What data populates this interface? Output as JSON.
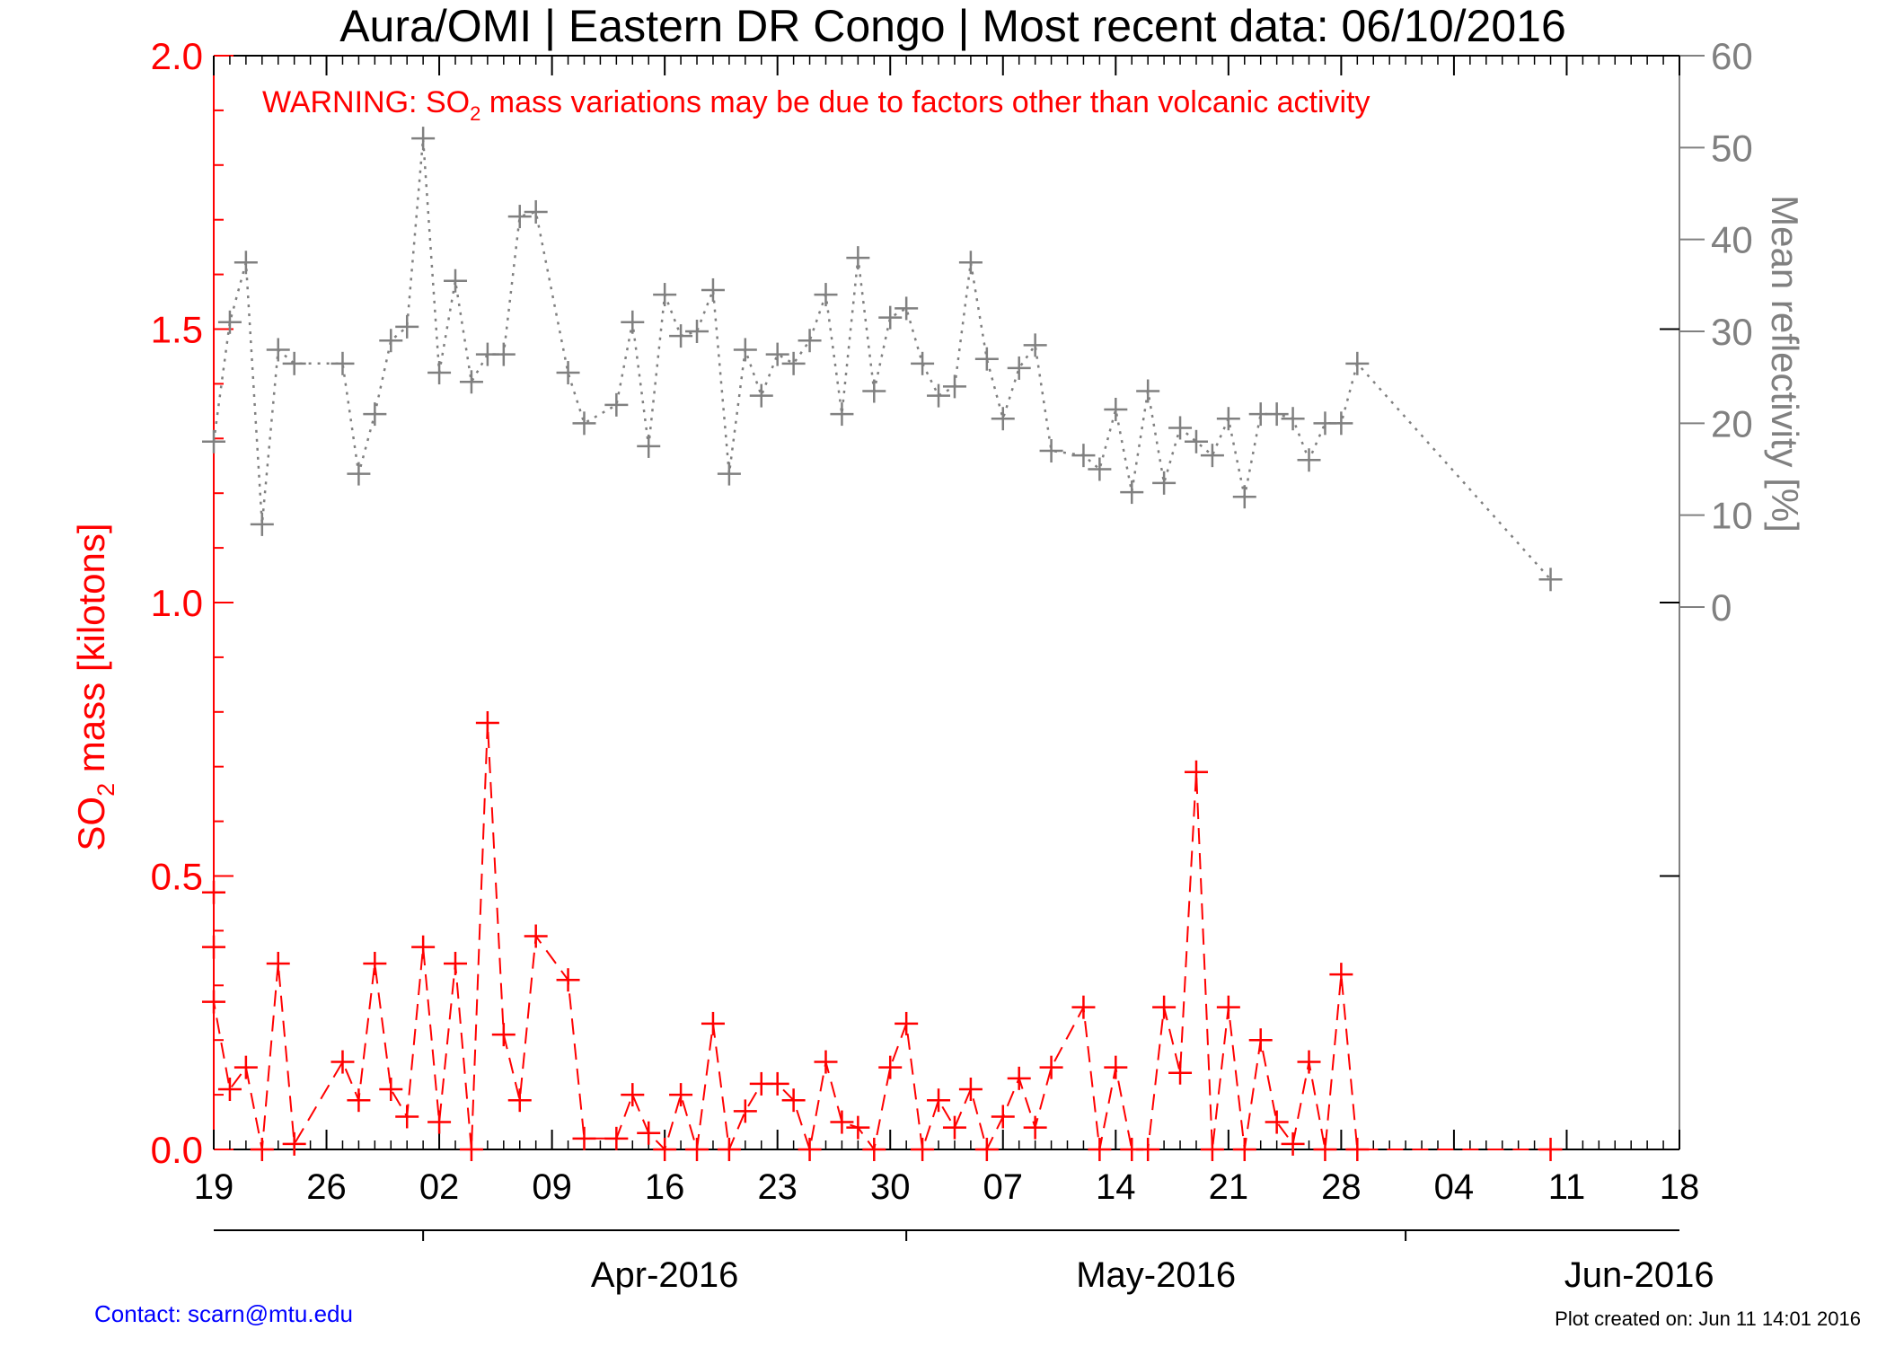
{
  "title": "Aura/OMI | Eastern DR Congo | Most recent data: 06/10/2016",
  "warning": {
    "prefix": "WARNING: SO",
    "subscript": "2",
    "suffix": " mass variations may be due to factors other than volcanic activity"
  },
  "left_axis": {
    "label_prefix": "SO",
    "label_subscript": "2",
    "label_suffix": " mass [kilotons]",
    "ticks": [
      "0.0",
      "0.5",
      "1.0",
      "1.5",
      "2.0"
    ],
    "color": "#ff0000"
  },
  "right_axis": {
    "label": "Mean reflectivity [%]",
    "ticks": [
      "0",
      "10",
      "20",
      "30",
      "40",
      "50",
      "60"
    ],
    "color": "#808080"
  },
  "x_axis": {
    "day_ticks": [
      "19",
      "26",
      "02",
      "09",
      "16",
      "23",
      "30",
      "07",
      "14",
      "21",
      "28",
      "04",
      "11",
      "18"
    ],
    "month_labels": [
      "Apr-2016",
      "May-2016",
      "Jun-2016"
    ]
  },
  "footer": {
    "contact": "Contact: scarn@mtu.edu",
    "created": "Plot created on: Jun 11 14:01 2016"
  },
  "chart_data": {
    "type": "line",
    "title": "Aura/OMI | Eastern DR Congo | Most recent data: 06/10/2016",
    "xlabel": "",
    "ylabel": "SO2 mass [kilotons]",
    "y2label": "Mean reflectivity [%]",
    "xlim": [
      "2016-03-19",
      "2016-06-18"
    ],
    "ylim": [
      0,
      2.0
    ],
    "y2lim": [
      0,
      60
    ],
    "grid": false,
    "series": [
      {
        "axis": "left",
        "color": "#ff0000",
        "style": "dashed",
        "marker": "plus",
        "points": [
          [
            "2016-03-19",
            0.47
          ],
          [
            "2016-03-19",
            0.37
          ],
          [
            "2016-03-19",
            0.27
          ],
          [
            "2016-03-20",
            0.11
          ],
          [
            "2016-03-21",
            0.15
          ],
          [
            "2016-03-22",
            0.0
          ],
          [
            "2016-03-23",
            0.34
          ],
          [
            "2016-03-24",
            0.01
          ],
          [
            "2016-03-27",
            0.16
          ],
          [
            "2016-03-28",
            0.09
          ],
          [
            "2016-03-29",
            0.34
          ],
          [
            "2016-03-30",
            0.11
          ],
          [
            "2016-03-31",
            0.06
          ],
          [
            "2016-04-01",
            0.37
          ],
          [
            "2016-04-02",
            0.05
          ],
          [
            "2016-04-03",
            0.34
          ],
          [
            "2016-04-04",
            0.0
          ],
          [
            "2016-04-05",
            0.78
          ],
          [
            "2016-04-06",
            0.21
          ],
          [
            "2016-04-07",
            0.09
          ],
          [
            "2016-04-08",
            0.39
          ],
          [
            "2016-04-10",
            0.31
          ],
          [
            "2016-04-11",
            0.02
          ],
          [
            "2016-04-13",
            0.02
          ],
          [
            "2016-04-14",
            0.1
          ],
          [
            "2016-04-15",
            0.03
          ],
          [
            "2016-04-16",
            0.0
          ],
          [
            "2016-04-17",
            0.1
          ],
          [
            "2016-04-18",
            0.0
          ],
          [
            "2016-04-19",
            0.23
          ],
          [
            "2016-04-20",
            0.0
          ],
          [
            "2016-04-21",
            0.07
          ],
          [
            "2016-04-22",
            0.12
          ],
          [
            "2016-04-23",
            0.12
          ],
          [
            "2016-04-24",
            0.09
          ],
          [
            "2016-04-25",
            0.0
          ],
          [
            "2016-04-26",
            0.16
          ],
          [
            "2016-04-27",
            0.05
          ],
          [
            "2016-04-28",
            0.04
          ],
          [
            "2016-04-29",
            0.0
          ],
          [
            "2016-04-30",
            0.15
          ],
          [
            "2016-05-01",
            0.23
          ],
          [
            "2016-05-02",
            0.0
          ],
          [
            "2016-05-03",
            0.09
          ],
          [
            "2016-05-04",
            0.04
          ],
          [
            "2016-05-05",
            0.11
          ],
          [
            "2016-05-06",
            0.0
          ],
          [
            "2016-05-07",
            0.06
          ],
          [
            "2016-05-08",
            0.13
          ],
          [
            "2016-05-09",
            0.04
          ],
          [
            "2016-05-10",
            0.15
          ],
          [
            "2016-05-12",
            0.26
          ],
          [
            "2016-05-13",
            0.0
          ],
          [
            "2016-05-14",
            0.15
          ],
          [
            "2016-05-15",
            0.0
          ],
          [
            "2016-05-16",
            0.0
          ],
          [
            "2016-05-17",
            0.26
          ],
          [
            "2016-05-18",
            0.14
          ],
          [
            "2016-05-19",
            0.69
          ],
          [
            "2016-05-20",
            0.0
          ],
          [
            "2016-05-21",
            0.26
          ],
          [
            "2016-05-22",
            0.0
          ],
          [
            "2016-05-23",
            0.2
          ],
          [
            "2016-05-24",
            0.05
          ],
          [
            "2016-05-25",
            0.01
          ],
          [
            "2016-05-26",
            0.16
          ],
          [
            "2016-05-27",
            0.0
          ],
          [
            "2016-05-28",
            0.32
          ],
          [
            "2016-05-29",
            0.0
          ],
          [
            "2016-06-10",
            0.0
          ]
        ]
      },
      {
        "axis": "right",
        "color": "#808080",
        "style": "dotted",
        "marker": "plus",
        "points": [
          [
            "2016-03-19",
            18.0
          ],
          [
            "2016-03-20",
            31.0
          ],
          [
            "2016-03-21",
            37.5
          ],
          [
            "2016-03-22",
            9.0
          ],
          [
            "2016-03-23",
            28.0
          ],
          [
            "2016-03-24",
            26.5
          ],
          [
            "2016-03-27",
            26.5
          ],
          [
            "2016-03-28",
            14.5
          ],
          [
            "2016-03-29",
            21.0
          ],
          [
            "2016-03-30",
            29.0
          ],
          [
            "2016-03-31",
            30.5
          ],
          [
            "2016-04-01",
            51.0
          ],
          [
            "2016-04-02",
            25.5
          ],
          [
            "2016-04-03",
            35.5
          ],
          [
            "2016-04-04",
            24.5
          ],
          [
            "2016-04-05",
            27.5
          ],
          [
            "2016-04-06",
            27.5
          ],
          [
            "2016-04-07",
            42.5
          ],
          [
            "2016-04-08",
            43.0
          ],
          [
            "2016-04-10",
            25.5
          ],
          [
            "2016-04-11",
            20.0
          ],
          [
            "2016-04-13",
            22.0
          ],
          [
            "2016-04-14",
            31.0
          ],
          [
            "2016-04-15",
            17.5
          ],
          [
            "2016-04-16",
            34.0
          ],
          [
            "2016-04-17",
            29.5
          ],
          [
            "2016-04-18",
            30.0
          ],
          [
            "2016-04-19",
            34.5
          ],
          [
            "2016-04-20",
            14.5
          ],
          [
            "2016-04-21",
            28.0
          ],
          [
            "2016-04-22",
            23.0
          ],
          [
            "2016-04-23",
            27.5
          ],
          [
            "2016-04-24",
            26.5
          ],
          [
            "2016-04-25",
            29.0
          ],
          [
            "2016-04-26",
            34.0
          ],
          [
            "2016-04-27",
            21.0
          ],
          [
            "2016-04-28",
            38.0
          ],
          [
            "2016-04-29",
            23.5
          ],
          [
            "2016-04-30",
            31.5
          ],
          [
            "2016-05-01",
            32.5
          ],
          [
            "2016-05-02",
            26.5
          ],
          [
            "2016-05-03",
            23.0
          ],
          [
            "2016-05-04",
            24.0
          ],
          [
            "2016-05-05",
            37.5
          ],
          [
            "2016-05-06",
            27.0
          ],
          [
            "2016-05-07",
            20.5
          ],
          [
            "2016-05-08",
            26.0
          ],
          [
            "2016-05-09",
            28.5
          ],
          [
            "2016-05-10",
            17.0
          ],
          [
            "2016-05-12",
            16.5
          ],
          [
            "2016-05-13",
            15.0
          ],
          [
            "2016-05-14",
            21.5
          ],
          [
            "2016-05-15",
            12.5
          ],
          [
            "2016-05-16",
            23.5
          ],
          [
            "2016-05-17",
            13.5
          ],
          [
            "2016-05-18",
            19.5
          ],
          [
            "2016-05-19",
            18.0
          ],
          [
            "2016-05-20",
            16.5
          ],
          [
            "2016-05-21",
            20.5
          ],
          [
            "2016-05-22",
            12.0
          ],
          [
            "2016-05-23",
            21.0
          ],
          [
            "2016-05-24",
            21.0
          ],
          [
            "2016-05-25",
            20.5
          ],
          [
            "2016-05-26",
            16.0
          ],
          [
            "2016-05-27",
            20.0
          ],
          [
            "2016-05-28",
            20.0
          ],
          [
            "2016-05-29",
            26.5
          ],
          [
            "2016-06-10",
            3.0
          ]
        ]
      }
    ]
  }
}
